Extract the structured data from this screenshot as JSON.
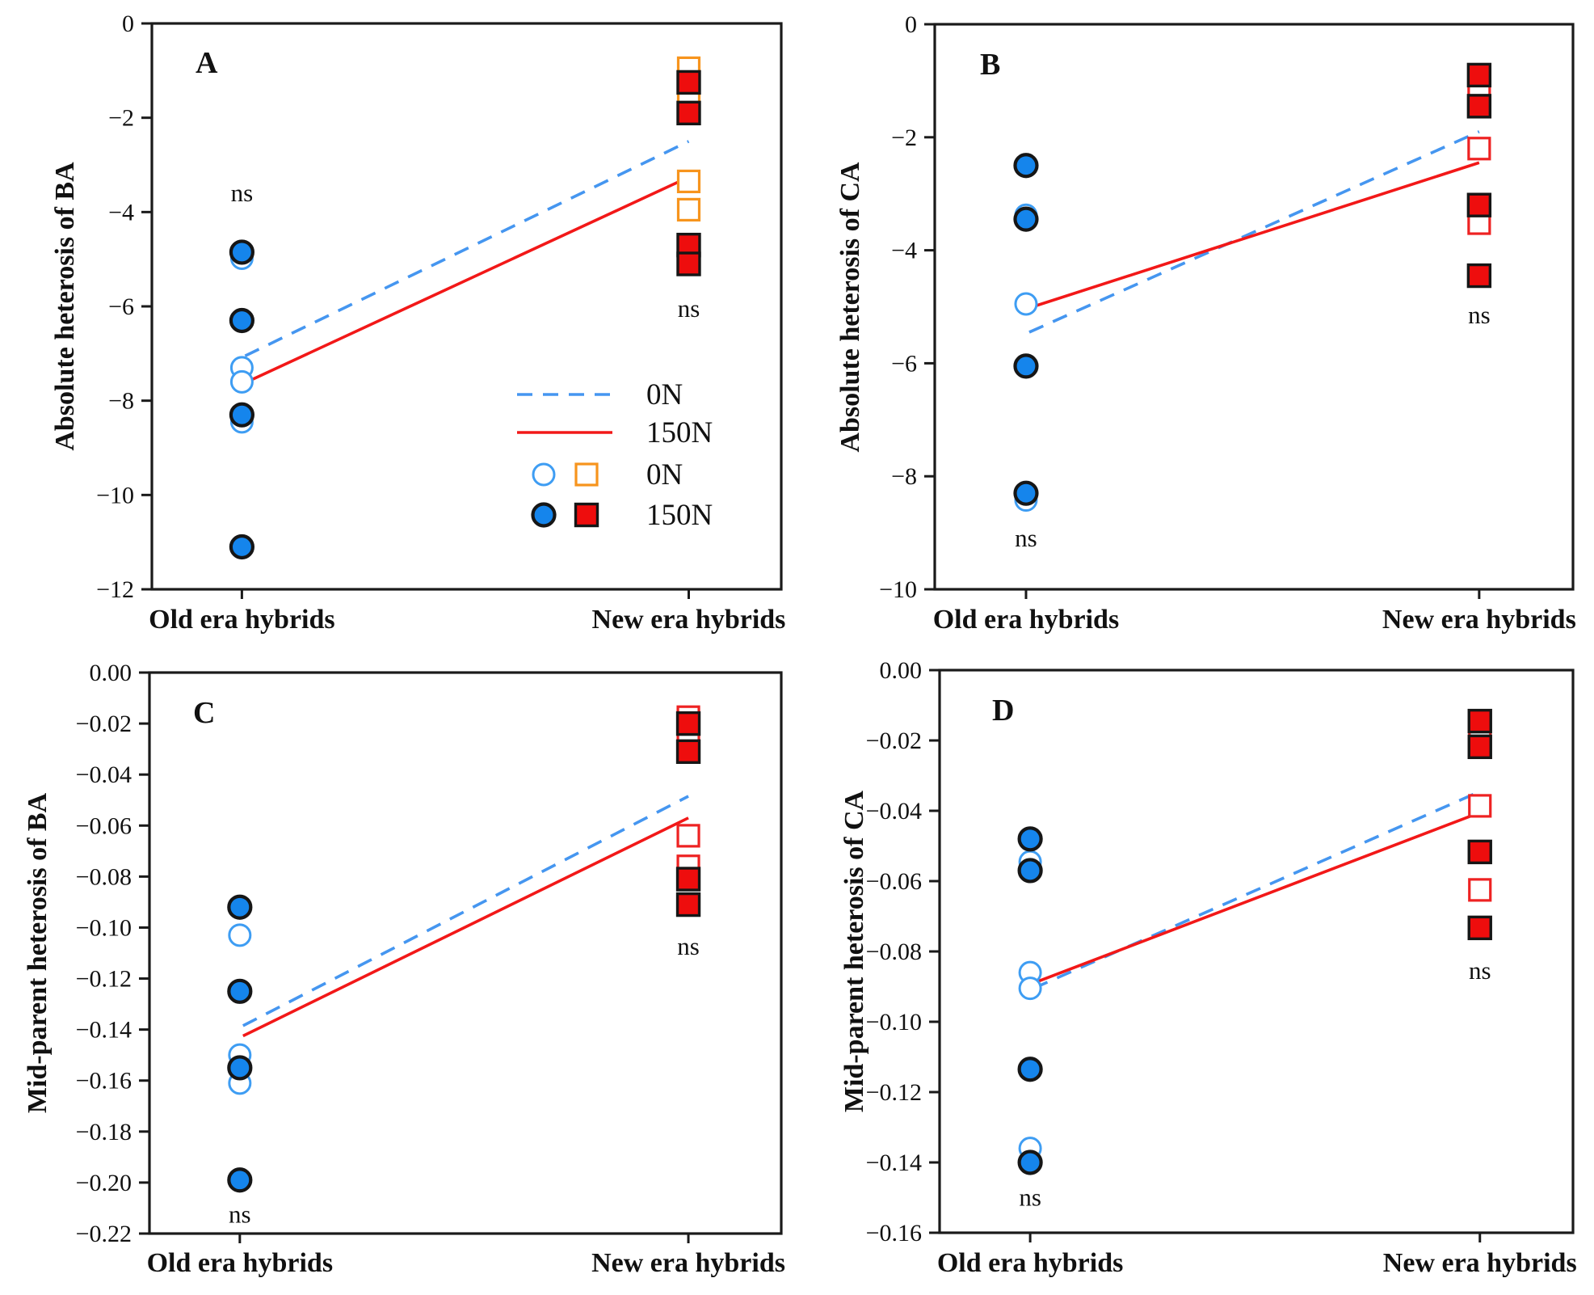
{
  "colors": {
    "blue_fill": "#1585EC",
    "blue_open_edge": "#3E9DF3",
    "blue_dash_line": "#4596F0",
    "red_line": "#F21818",
    "red_fill": "#EE0D0D",
    "orange_open_edge": "#F7941D",
    "red_open_edge": "#EE2222",
    "marker_edge": "#161616",
    "axis": "#1A1A1A"
  },
  "legend": {
    "line_items": [
      {
        "style": "dashed",
        "label": "0N"
      },
      {
        "style": "solid",
        "label": "150N"
      }
    ],
    "marker_items": [
      {
        "style": "open",
        "label": "0N"
      },
      {
        "style": "filled",
        "label": "150N"
      }
    ]
  },
  "chart_data": [
    {
      "type": "scatter",
      "panel": "A",
      "ylabel": "Absolute heterosis of BA",
      "ylim": [
        -12,
        0
      ],
      "ytick_step": 2,
      "tick_decimals": 0,
      "categories": [
        "Old era hybrids",
        "New era hybrids"
      ],
      "series": [
        {
          "name": "old-150N-filled-circle",
          "x": "old",
          "marker": "filled_circle",
          "values": [
            -4.85,
            -6.3,
            -8.3,
            -11.1
          ]
        },
        {
          "name": "old-0N-open-circle",
          "x": "old",
          "marker": "open_circle",
          "values": [
            -4.98,
            -7.3,
            -7.6,
            -8.45
          ]
        },
        {
          "name": "new-0N-open-square",
          "x": "new",
          "marker": "open_square",
          "values": [
            -0.95,
            -1.55,
            -3.35,
            -3.95
          ]
        },
        {
          "name": "new-150N-filled-square",
          "x": "new",
          "marker": "filled_square",
          "values": [
            -1.25,
            -1.9,
            -4.7,
            -5.1
          ]
        }
      ],
      "lines": [
        {
          "name": "0N",
          "style": "dashed",
          "from": -7.05,
          "to": -2.5
        },
        {
          "name": "150N",
          "style": "solid",
          "from": -7.62,
          "to": -3.26
        }
      ],
      "annotations": [
        {
          "text": "ns",
          "x": "old",
          "value": -3.6
        },
        {
          "text": "ns",
          "value": -6.05,
          "x": "new"
        }
      ],
      "open_square_color": "#F7941D",
      "has_legend": true
    },
    {
      "type": "scatter",
      "panel": "B",
      "ylabel": "Absolute heterosis of CA",
      "ylim": [
        -10,
        0
      ],
      "ytick_step": 2,
      "tick_decimals": 0,
      "categories": [
        "Old era hybrids",
        "New era hybrids"
      ],
      "series": [
        {
          "name": "old-150N-filled-circle",
          "x": "old",
          "marker": "filled_circle",
          "values": [
            -2.5,
            -3.45,
            -6.05,
            -8.3
          ]
        },
        {
          "name": "old-0N-open-circle",
          "x": "old",
          "marker": "open_circle",
          "values": [
            -3.38,
            -4.95,
            -8.42
          ]
        },
        {
          "name": "new-0N-open-square",
          "x": "new",
          "marker": "open_square",
          "values": [
            -1.17,
            -2.2,
            -3.52
          ]
        },
        {
          "name": "new-150N-filled-square",
          "x": "new",
          "marker": "filled_square",
          "values": [
            -0.9,
            -1.45,
            -3.2,
            -4.45
          ]
        }
      ],
      "lines": [
        {
          "name": "0N",
          "style": "dashed",
          "from": -5.45,
          "to": -1.9
        },
        {
          "name": "150N",
          "style": "solid",
          "from": -5.02,
          "to": -2.45
        }
      ],
      "annotations": [
        {
          "text": "ns",
          "x": "old",
          "value": -9.1
        },
        {
          "text": "ns",
          "x": "new",
          "value": -5.15
        }
      ],
      "open_square_color": "#EE2222",
      "has_legend": false
    },
    {
      "type": "scatter",
      "panel": "C",
      "ylabel": "Mid-parent heterosis of BA",
      "ylim": [
        -0.22,
        0
      ],
      "ytick_step": 0.02,
      "tick_decimals": 2,
      "categories": [
        "Old era hybrids",
        "New era hybrids"
      ],
      "series": [
        {
          "name": "old-150N-filled-circle",
          "x": "old",
          "marker": "filled_circle",
          "values": [
            -0.092,
            -0.125,
            -0.155,
            -0.199
          ]
        },
        {
          "name": "old-0N-open-circle",
          "x": "old",
          "marker": "open_circle",
          "values": [
            -0.103,
            -0.15,
            -0.161
          ]
        },
        {
          "name": "new-0N-open-square",
          "x": "new",
          "marker": "open_square",
          "values": [
            -0.0175,
            -0.028,
            -0.064,
            -0.076
          ]
        },
        {
          "name": "new-150N-filled-square",
          "x": "new",
          "marker": "filled_square",
          "values": [
            -0.02,
            -0.031,
            -0.081,
            -0.091
          ]
        }
      ],
      "lines": [
        {
          "name": "0N",
          "style": "dashed",
          "from": -0.1385,
          "to": -0.0485
        },
        {
          "name": "150N",
          "style": "solid",
          "from": -0.1425,
          "to": -0.057
        }
      ],
      "annotations": [
        {
          "text": "ns",
          "x": "old",
          "value": -0.2125
        },
        {
          "text": "ns",
          "x": "new",
          "value": -0.1075
        }
      ],
      "open_square_color": "#EE2222",
      "has_legend": false
    },
    {
      "type": "scatter",
      "panel": "D",
      "ylabel": "Mid-parent heterosis of CA",
      "ylim": [
        -0.16,
        0
      ],
      "ytick_step": 0.02,
      "tick_decimals": 2,
      "categories": [
        "Old era hybrids",
        "New era hybrids"
      ],
      "series": [
        {
          "name": "old-150N-filled-circle",
          "x": "old",
          "marker": "filled_circle",
          "values": [
            -0.048,
            -0.057,
            -0.1135,
            -0.14
          ]
        },
        {
          "name": "old-0N-open-circle",
          "x": "old",
          "marker": "open_circle",
          "values": [
            -0.0545,
            -0.086,
            -0.0905,
            -0.136
          ]
        },
        {
          "name": "new-0N-open-square",
          "x": "new",
          "marker": "open_square",
          "values": [
            -0.018,
            -0.0386,
            -0.0625
          ]
        },
        {
          "name": "new-150N-filled-square",
          "x": "new",
          "marker": "filled_square",
          "values": [
            -0.0145,
            -0.0218,
            -0.0517,
            -0.0733
          ]
        }
      ],
      "lines": [
        {
          "name": "0N",
          "style": "dashed",
          "from": -0.0905,
          "to": -0.0345
        },
        {
          "name": "150N",
          "style": "solid",
          "from": -0.089,
          "to": -0.0405
        }
      ],
      "annotations": [
        {
          "text": "ns",
          "x": "old",
          "value": -0.15
        },
        {
          "text": "ns",
          "x": "new",
          "value": -0.0855
        }
      ],
      "open_square_color": "#EE2222",
      "has_legend": false
    }
  ]
}
